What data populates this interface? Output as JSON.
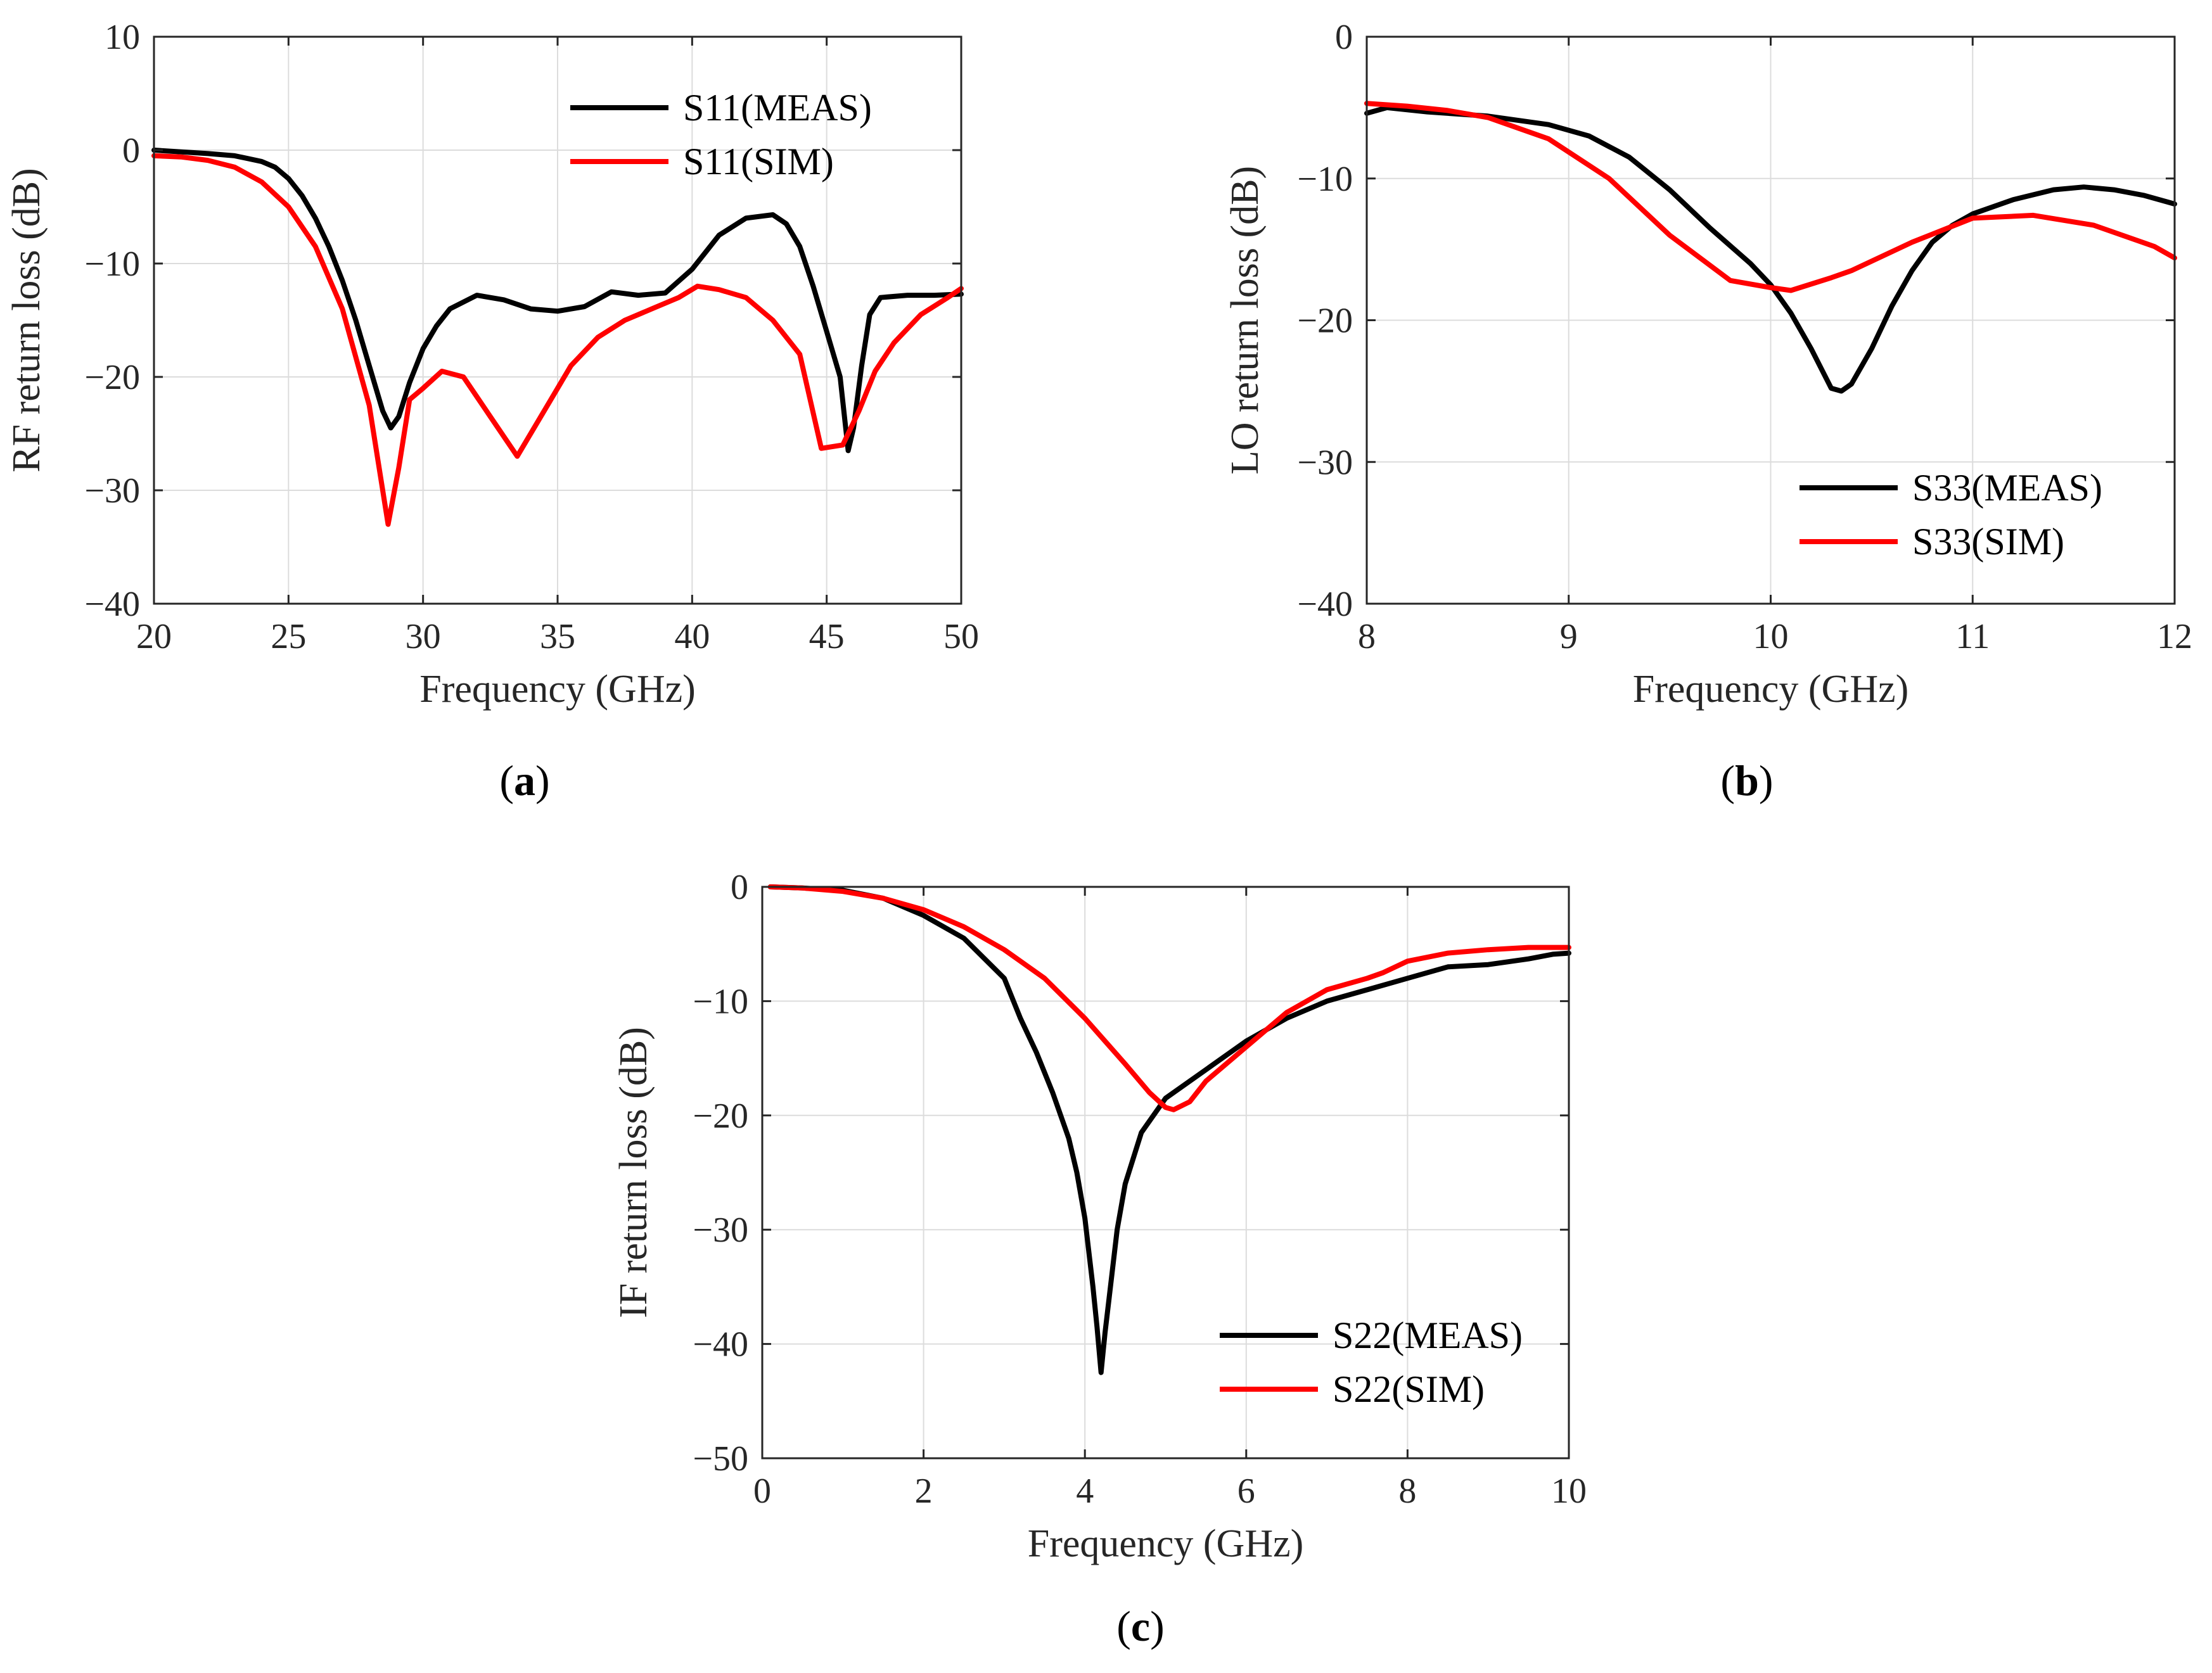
{
  "chart_data": [
    {
      "type": "line",
      "caption_letter": "a",
      "xlabel": "Frequency (GHz)",
      "ylabel": "RF return loss (dB)",
      "xlim": [
        20,
        50
      ],
      "ylim": [
        -40,
        10
      ],
      "xticks": [
        20,
        25,
        30,
        35,
        40,
        45,
        50
      ],
      "yticks": [
        -40,
        -30,
        -20,
        -10,
        0,
        10
      ],
      "grid": true,
      "legend_position": "top-right",
      "series": [
        {
          "name": "S11(MEAS)",
          "color": "#000000",
          "x": [
            20,
            22,
            23,
            24,
            24.5,
            25,
            25.5,
            26,
            26.5,
            27,
            27.5,
            28,
            28.5,
            28.8,
            29.1,
            29.5,
            30,
            30.5,
            31,
            32,
            33,
            34,
            35,
            36,
            37,
            38,
            39,
            40,
            40.5,
            41,
            42,
            43,
            43.5,
            44,
            44.5,
            45,
            45.5,
            45.8,
            46,
            46.3,
            46.6,
            47,
            48,
            49,
            50
          ],
          "y": [
            0,
            -0.3,
            -0.5,
            -1.0,
            -1.5,
            -2.5,
            -4.0,
            -6.0,
            -8.5,
            -11.5,
            -15,
            -19,
            -23,
            -24.5,
            -23.5,
            -20.5,
            -17.5,
            -15.5,
            -14,
            -12.8,
            -13.2,
            -14,
            -14.2,
            -13.8,
            -12.5,
            -12.8,
            -12.6,
            -10.5,
            -9,
            -7.5,
            -6,
            -5.7,
            -6.5,
            -8.5,
            -12,
            -16,
            -20,
            -26.5,
            -24.5,
            -19,
            -14.5,
            -13,
            -12.8,
            -12.8,
            -12.7
          ]
        },
        {
          "name": "S11(SIM)",
          "color": "#ff0000",
          "x": [
            20,
            21,
            22,
            23,
            24,
            25,
            26,
            27,
            28,
            28.7,
            29.1,
            29.5,
            30,
            30.7,
            31.5,
            32.5,
            33.5,
            34.5,
            35.5,
            36.5,
            37.5,
            38.5,
            39.5,
            40.2,
            41,
            42,
            43,
            44,
            44.8,
            45.6,
            46.2,
            46.8,
            47.5,
            48.5,
            49.5,
            50
          ],
          "y": [
            -0.5,
            -0.6,
            -0.9,
            -1.5,
            -2.8,
            -5.0,
            -8.5,
            -14,
            -22.5,
            -33,
            -28,
            -22,
            -21,
            -19.5,
            -20,
            -23.5,
            -27,
            -23,
            -19,
            -16.5,
            -15,
            -14,
            -13,
            -12,
            -12.3,
            -13,
            -15,
            -18,
            -26.3,
            -26,
            -23,
            -19.5,
            -17,
            -14.5,
            -13,
            -12.2
          ]
        }
      ]
    },
    {
      "type": "line",
      "caption_letter": "b",
      "xlabel": "Frequency (GHz)",
      "ylabel": "LO return loss (dB)",
      "xlim": [
        8,
        12
      ],
      "ylim": [
        -40,
        0
      ],
      "xticks": [
        8,
        9,
        10,
        11,
        12
      ],
      "yticks": [
        -40,
        -30,
        -20,
        -10,
        0
      ],
      "grid": true,
      "legend_position": "bottom-right",
      "series": [
        {
          "name": "S33(MEAS)",
          "color": "#000000",
          "x": [
            8,
            8.1,
            8.3,
            8.6,
            8.9,
            9.1,
            9.3,
            9.5,
            9.7,
            9.9,
            10.0,
            10.1,
            10.2,
            10.3,
            10.35,
            10.4,
            10.5,
            10.6,
            10.7,
            10.8,
            10.9,
            11.0,
            11.2,
            11.4,
            11.55,
            11.7,
            11.85,
            12
          ],
          "y": [
            -5.4,
            -5.0,
            -5.3,
            -5.6,
            -6.2,
            -7.0,
            -8.5,
            -10.8,
            -13.5,
            -16,
            -17.5,
            -19.5,
            -22,
            -24.8,
            -25,
            -24.5,
            -22,
            -19,
            -16.5,
            -14.5,
            -13.3,
            -12.5,
            -11.5,
            -10.8,
            -10.6,
            -10.8,
            -11.2,
            -11.8
          ]
        },
        {
          "name": "S33(SIM)",
          "color": "#ff0000",
          "x": [
            8,
            8.2,
            8.4,
            8.6,
            8.9,
            9.2,
            9.5,
            9.8,
            10.0,
            10.1,
            10.3,
            10.4,
            10.7,
            11.0,
            11.3,
            11.6,
            11.9,
            12
          ],
          "y": [
            -4.7,
            -4.9,
            -5.2,
            -5.7,
            -7.2,
            -10,
            -14,
            -17.2,
            -17.7,
            -17.9,
            -17,
            -16.5,
            -14.5,
            -12.8,
            -12.6,
            -13.3,
            -14.8,
            -15.6
          ]
        }
      ]
    },
    {
      "type": "line",
      "caption_letter": "c",
      "xlabel": "Frequency (GHz)",
      "ylabel": "IF return loss (dB)",
      "xlim": [
        0,
        10
      ],
      "ylim": [
        -50,
        0
      ],
      "xticks": [
        0,
        2,
        4,
        6,
        8,
        10
      ],
      "yticks": [
        -50,
        -40,
        -30,
        -20,
        -10,
        0
      ],
      "grid": true,
      "legend_position": "bottom-right",
      "series": [
        {
          "name": "S22(MEAS)",
          "color": "#000000",
          "x": [
            0.1,
            0.5,
            1.0,
            1.5,
            2.0,
            2.5,
            3.0,
            3.2,
            3.4,
            3.6,
            3.8,
            3.9,
            4.0,
            4.1,
            4.15,
            4.2,
            4.25,
            4.3,
            4.4,
            4.5,
            4.7,
            5.0,
            5.5,
            6.0,
            6.5,
            7.0,
            7.5,
            8.0,
            8.5,
            9.0,
            9.5,
            9.8,
            10.0
          ],
          "y": [
            0,
            -0.1,
            -0.3,
            -1.0,
            -2.5,
            -4.5,
            -8.0,
            -11.5,
            -14.5,
            -18,
            -22,
            -25,
            -29,
            -35,
            -38.5,
            -42.5,
            -39,
            -36,
            -30,
            -26,
            -21.5,
            -18.5,
            -16,
            -13.5,
            -11.5,
            -10,
            -9,
            -8,
            -7,
            -6.8,
            -6.3,
            -5.9,
            -5.8
          ]
        },
        {
          "name": "S22(SIM)",
          "color": "#ff0000",
          "x": [
            0.1,
            0.5,
            1.0,
            1.5,
            2.0,
            2.5,
            3.0,
            3.5,
            4.0,
            4.5,
            4.8,
            5.0,
            5.1,
            5.3,
            5.5,
            6.0,
            6.5,
            7.0,
            7.5,
            7.7,
            8.0,
            8.5,
            9.0,
            9.5,
            10.0
          ],
          "y": [
            0,
            -0.1,
            -0.4,
            -1.0,
            -2.0,
            -3.5,
            -5.5,
            -8.0,
            -11.5,
            -15.5,
            -18,
            -19.3,
            -19.5,
            -18.8,
            -17,
            -14,
            -11,
            -9,
            -8,
            -7.5,
            -6.5,
            -5.8,
            -5.5,
            -5.3,
            -5.3
          ]
        }
      ]
    }
  ]
}
